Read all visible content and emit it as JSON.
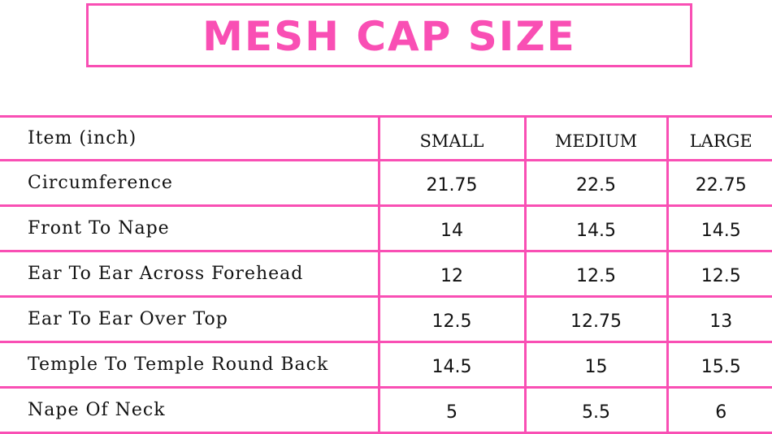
{
  "title": "MESH CAP SIZE",
  "colors": {
    "accent": "#f94fb4",
    "text": "#111111",
    "background": "#ffffff"
  },
  "table": {
    "headers": [
      "Item (inch)",
      "SMALL",
      "MEDIUM",
      "LARGE"
    ],
    "rows": [
      {
        "item": "Circumference",
        "small": "21.75",
        "medium": "22.5",
        "large": "22.75"
      },
      {
        "item": "Front To Nape",
        "small": "14",
        "medium": "14.5",
        "large": "14.5"
      },
      {
        "item": "Ear To Ear Across Forehead",
        "small": "12",
        "medium": "12.5",
        "large": "12.5"
      },
      {
        "item": "Ear To Ear Over Top",
        "small": "12.5",
        "medium": "12.75",
        "large": "13"
      },
      {
        "item": "Temple To Temple Round Back",
        "small": "14.5",
        "medium": "15",
        "large": "15.5"
      },
      {
        "item": "Nape Of Neck",
        "small": "5",
        "medium": "5.5",
        "large": "6"
      }
    ]
  }
}
